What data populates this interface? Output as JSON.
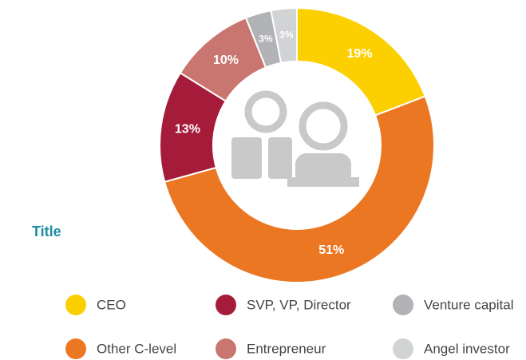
{
  "chart_data": {
    "type": "donut",
    "title": "Title",
    "categories": [
      "CEO",
      "Other C-level",
      "SVP, VP, Director",
      "Entrepreneur",
      "Venture capital",
      "Angel investor"
    ],
    "values": [
      19,
      51,
      13,
      10,
      3,
      3
    ],
    "value_labels": [
      "19%",
      "51%",
      "13%",
      "10%",
      "3%",
      "3%"
    ],
    "colors": [
      "#fcd000",
      "#ec7723",
      "#a51c3a",
      "#c97670",
      "#b2b3b6",
      "#d2d3d5"
    ],
    "legend": "bottom"
  }
}
